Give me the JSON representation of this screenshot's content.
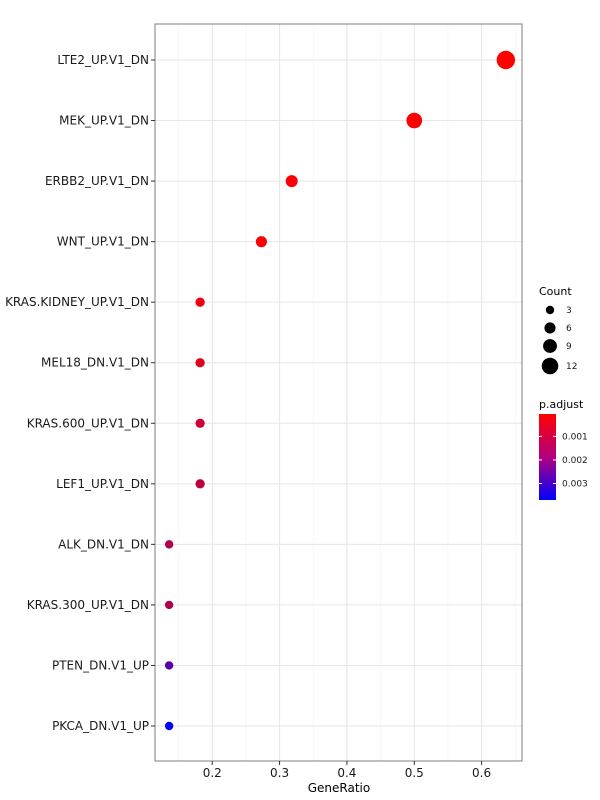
{
  "chart_data": {
    "type": "scatter",
    "xlabel": "GeneRatio",
    "ylabel": "",
    "xlim": [
      0.115,
      0.66
    ],
    "xticks": [
      "0.2",
      "0.3",
      "0.4",
      "0.5",
      "0.6"
    ],
    "grid": true,
    "legend_position": "right",
    "points": [
      {
        "term": "LTE2_UP.V1_DN",
        "gene_ratio": 0.636,
        "count": 14,
        "p_adjust": 5e-05
      },
      {
        "term": "MEK_UP.V1_DN",
        "gene_ratio": 0.5,
        "count": 11,
        "p_adjust": 5e-05
      },
      {
        "term": "ERBB2_UP.V1_DN",
        "gene_ratio": 0.318,
        "count": 7,
        "p_adjust": 0.0001
      },
      {
        "term": "WNT_UP.V1_DN",
        "gene_ratio": 0.273,
        "count": 6,
        "p_adjust": 0.0001
      },
      {
        "term": "KRAS.KIDNEY_UP.V1_DN",
        "gene_ratio": 0.182,
        "count": 4,
        "p_adjust": 0.0003
      },
      {
        "term": "MEL18_DN.V1_DN",
        "gene_ratio": 0.182,
        "count": 4,
        "p_adjust": 0.0005
      },
      {
        "term": "KRAS.600_UP.V1_DN",
        "gene_ratio": 0.182,
        "count": 4,
        "p_adjust": 0.0008
      },
      {
        "term": "LEF1_UP.V1_DN",
        "gene_ratio": 0.182,
        "count": 4,
        "p_adjust": 0.001
      },
      {
        "term": "ALK_DN.V1_DN",
        "gene_ratio": 0.136,
        "count": 3,
        "p_adjust": 0.0012
      },
      {
        "term": "KRAS.300_UP.V1_DN",
        "gene_ratio": 0.136,
        "count": 3,
        "p_adjust": 0.0012
      },
      {
        "term": "PTEN_DN.V1_UP",
        "gene_ratio": 0.136,
        "count": 3,
        "p_adjust": 0.0025
      },
      {
        "term": "PKCA_DN.V1_UP",
        "gene_ratio": 0.136,
        "count": 3,
        "p_adjust": 0.0037
      }
    ],
    "size_legend": {
      "title": "Count",
      "values": [
        3,
        6,
        9,
        12
      ],
      "labels": [
        "3",
        "6",
        "9",
        "12"
      ]
    },
    "color_legend": {
      "title": "p.adjust",
      "range": [
        5e-05,
        0.0037
      ],
      "ticks": [
        0.001,
        0.002,
        0.003
      ],
      "tick_labels": [
        "0.001",
        "0.002",
        "0.003"
      ],
      "low_color": "#ff0000",
      "high_color": "#0000ff"
    }
  }
}
